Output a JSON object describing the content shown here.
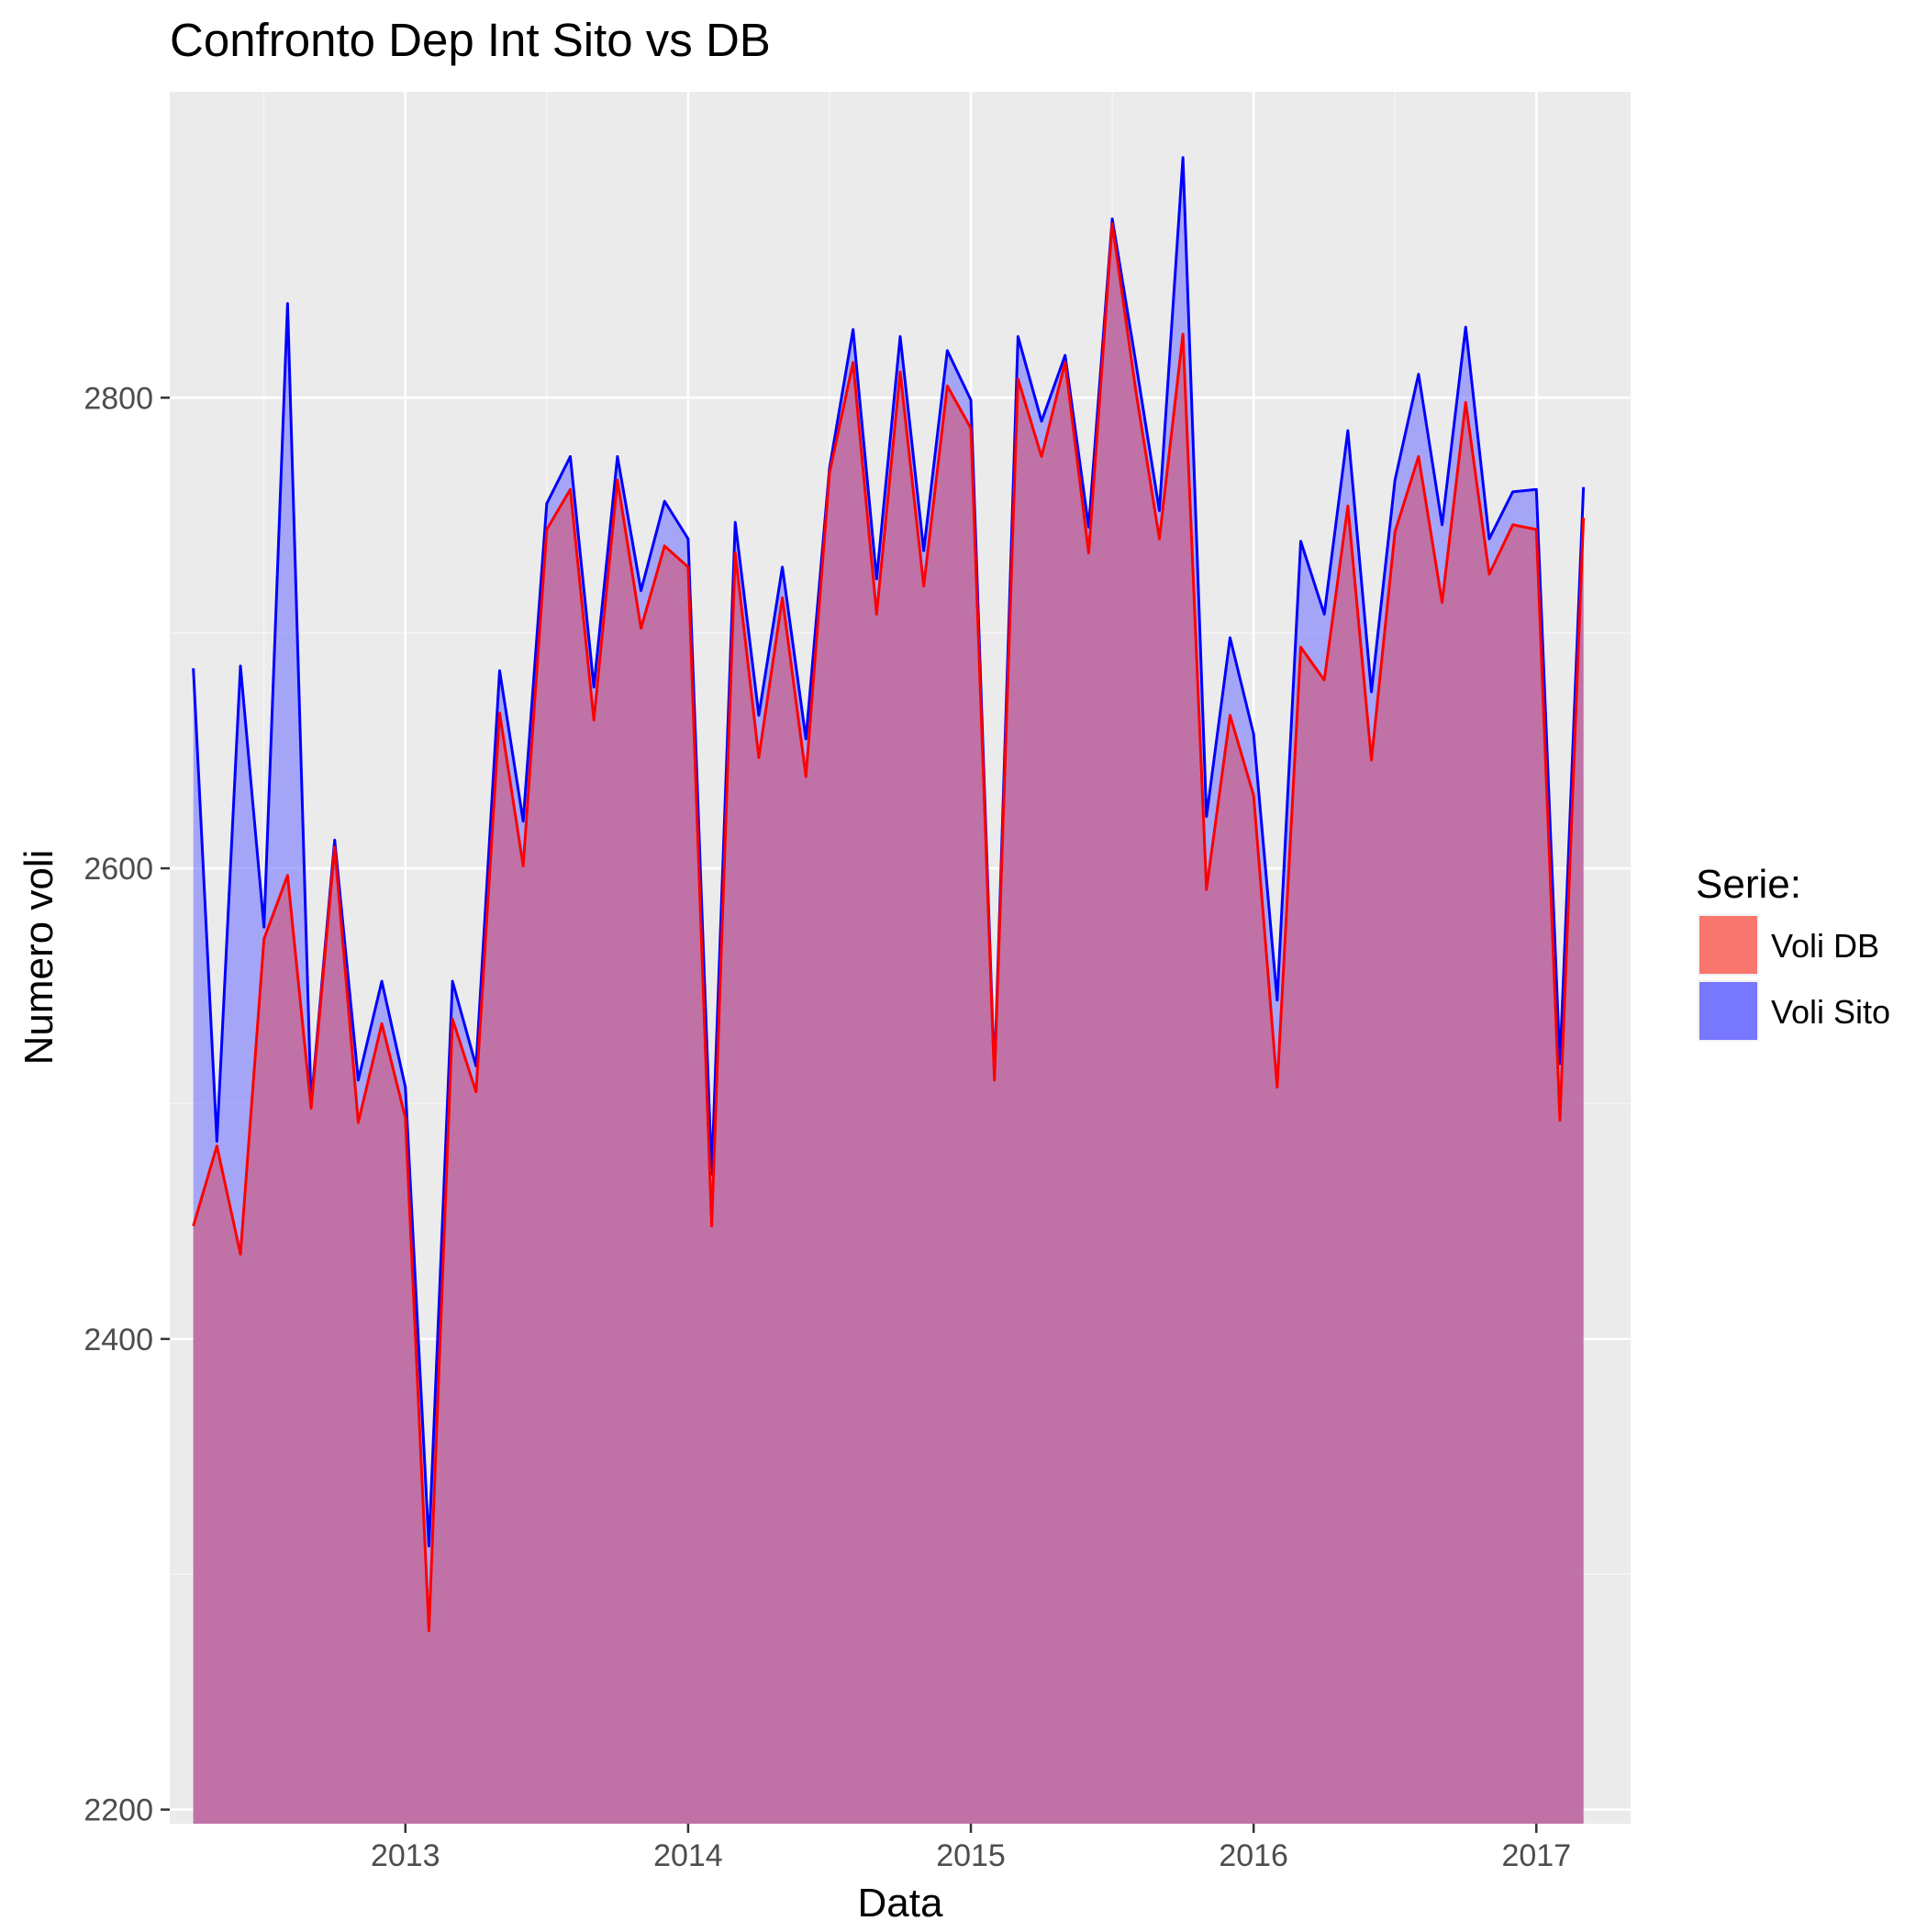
{
  "chart_data": {
    "type": "area",
    "title": "Confronto Dep Int Sito vs DB",
    "xlabel": "Data",
    "ylabel": "Numero voli",
    "x_tick_labels": [
      "2013",
      "2014",
      "2015",
      "2016",
      "2017"
    ],
    "y_tick_labels": [
      "2200",
      "2400",
      "2600",
      "2800"
    ],
    "y_ticks": [
      2200,
      2400,
      2600,
      2800
    ],
    "x_ticks": [
      "2013-01",
      "2014-01",
      "2015-01",
      "2016-01",
      "2017-01"
    ],
    "ylim": [
      2194,
      2930
    ],
    "xlim": [
      "2012-03",
      "2017-05"
    ],
    "grid": true,
    "legend": {
      "title": "Serie:",
      "position": "right",
      "entries": [
        "Voli DB",
        "Voli Sito"
      ]
    },
    "x": [
      "2012-04",
      "2012-05",
      "2012-06",
      "2012-07",
      "2012-08",
      "2012-09",
      "2012-10",
      "2012-11",
      "2012-12",
      "2013-01",
      "2013-02",
      "2013-03",
      "2013-04",
      "2013-05",
      "2013-06",
      "2013-07",
      "2013-08",
      "2013-09",
      "2013-10",
      "2013-11",
      "2013-12",
      "2014-01",
      "2014-02",
      "2014-03",
      "2014-04",
      "2014-05",
      "2014-06",
      "2014-07",
      "2014-08",
      "2014-09",
      "2014-10",
      "2014-11",
      "2014-12",
      "2015-01",
      "2015-02",
      "2015-03",
      "2015-04",
      "2015-05",
      "2015-06",
      "2015-07",
      "2015-08",
      "2015-09",
      "2015-10",
      "2015-11",
      "2015-12",
      "2016-01",
      "2016-02",
      "2016-03",
      "2016-04",
      "2016-05",
      "2016-06",
      "2016-07",
      "2016-08",
      "2016-09",
      "2016-10",
      "2016-11",
      "2016-12",
      "2017-01",
      "2017-02",
      "2017-03"
    ],
    "series": [
      {
        "name": "Voli Sito",
        "line_color": "#0000ff",
        "fill_color": "#7777ff",
        "values": [
          2685,
          2484,
          2686,
          2575,
          2840,
          2500,
          2612,
          2510,
          2552,
          2507,
          2312,
          2552,
          2516,
          2684,
          2620,
          2755,
          2775,
          2677,
          2775,
          2718,
          2756,
          2740,
          2470,
          2747,
          2665,
          2728,
          2655,
          2770,
          2829,
          2723,
          2826,
          2735,
          2820,
          2799,
          2512,
          2826,
          2790,
          2818,
          2745,
          2876,
          2815,
          2752,
          2902,
          2622,
          2698,
          2657,
          2544,
          2739,
          2708,
          2786,
          2675,
          2765,
          2810,
          2746,
          2830,
          2740,
          2760,
          2761,
          2517,
          2762
        ]
      },
      {
        "name": "Voli DB",
        "line_color": "#ff0000",
        "fill_color": "#f8766d",
        "values": [
          2448,
          2482,
          2436,
          2570,
          2597,
          2498,
          2609,
          2492,
          2534,
          2494,
          2276,
          2536,
          2505,
          2666,
          2601,
          2744,
          2761,
          2663,
          2765,
          2702,
          2737,
          2728,
          2448,
          2734,
          2647,
          2715,
          2639,
          2768,
          2815,
          2708,
          2811,
          2720,
          2805,
          2787,
          2510,
          2808,
          2775,
          2815,
          2734,
          2874,
          2803,
          2740,
          2827,
          2591,
          2665,
          2631,
          2507,
          2694,
          2680,
          2754,
          2646,
          2743,
          2775,
          2713,
          2798,
          2725,
          2746,
          2744,
          2493,
          2749
        ]
      }
    ]
  },
  "colors": {
    "panel_background": "#ebebeb",
    "grid_major": "#ffffff",
    "overlap_fill": "#c071a6"
  }
}
